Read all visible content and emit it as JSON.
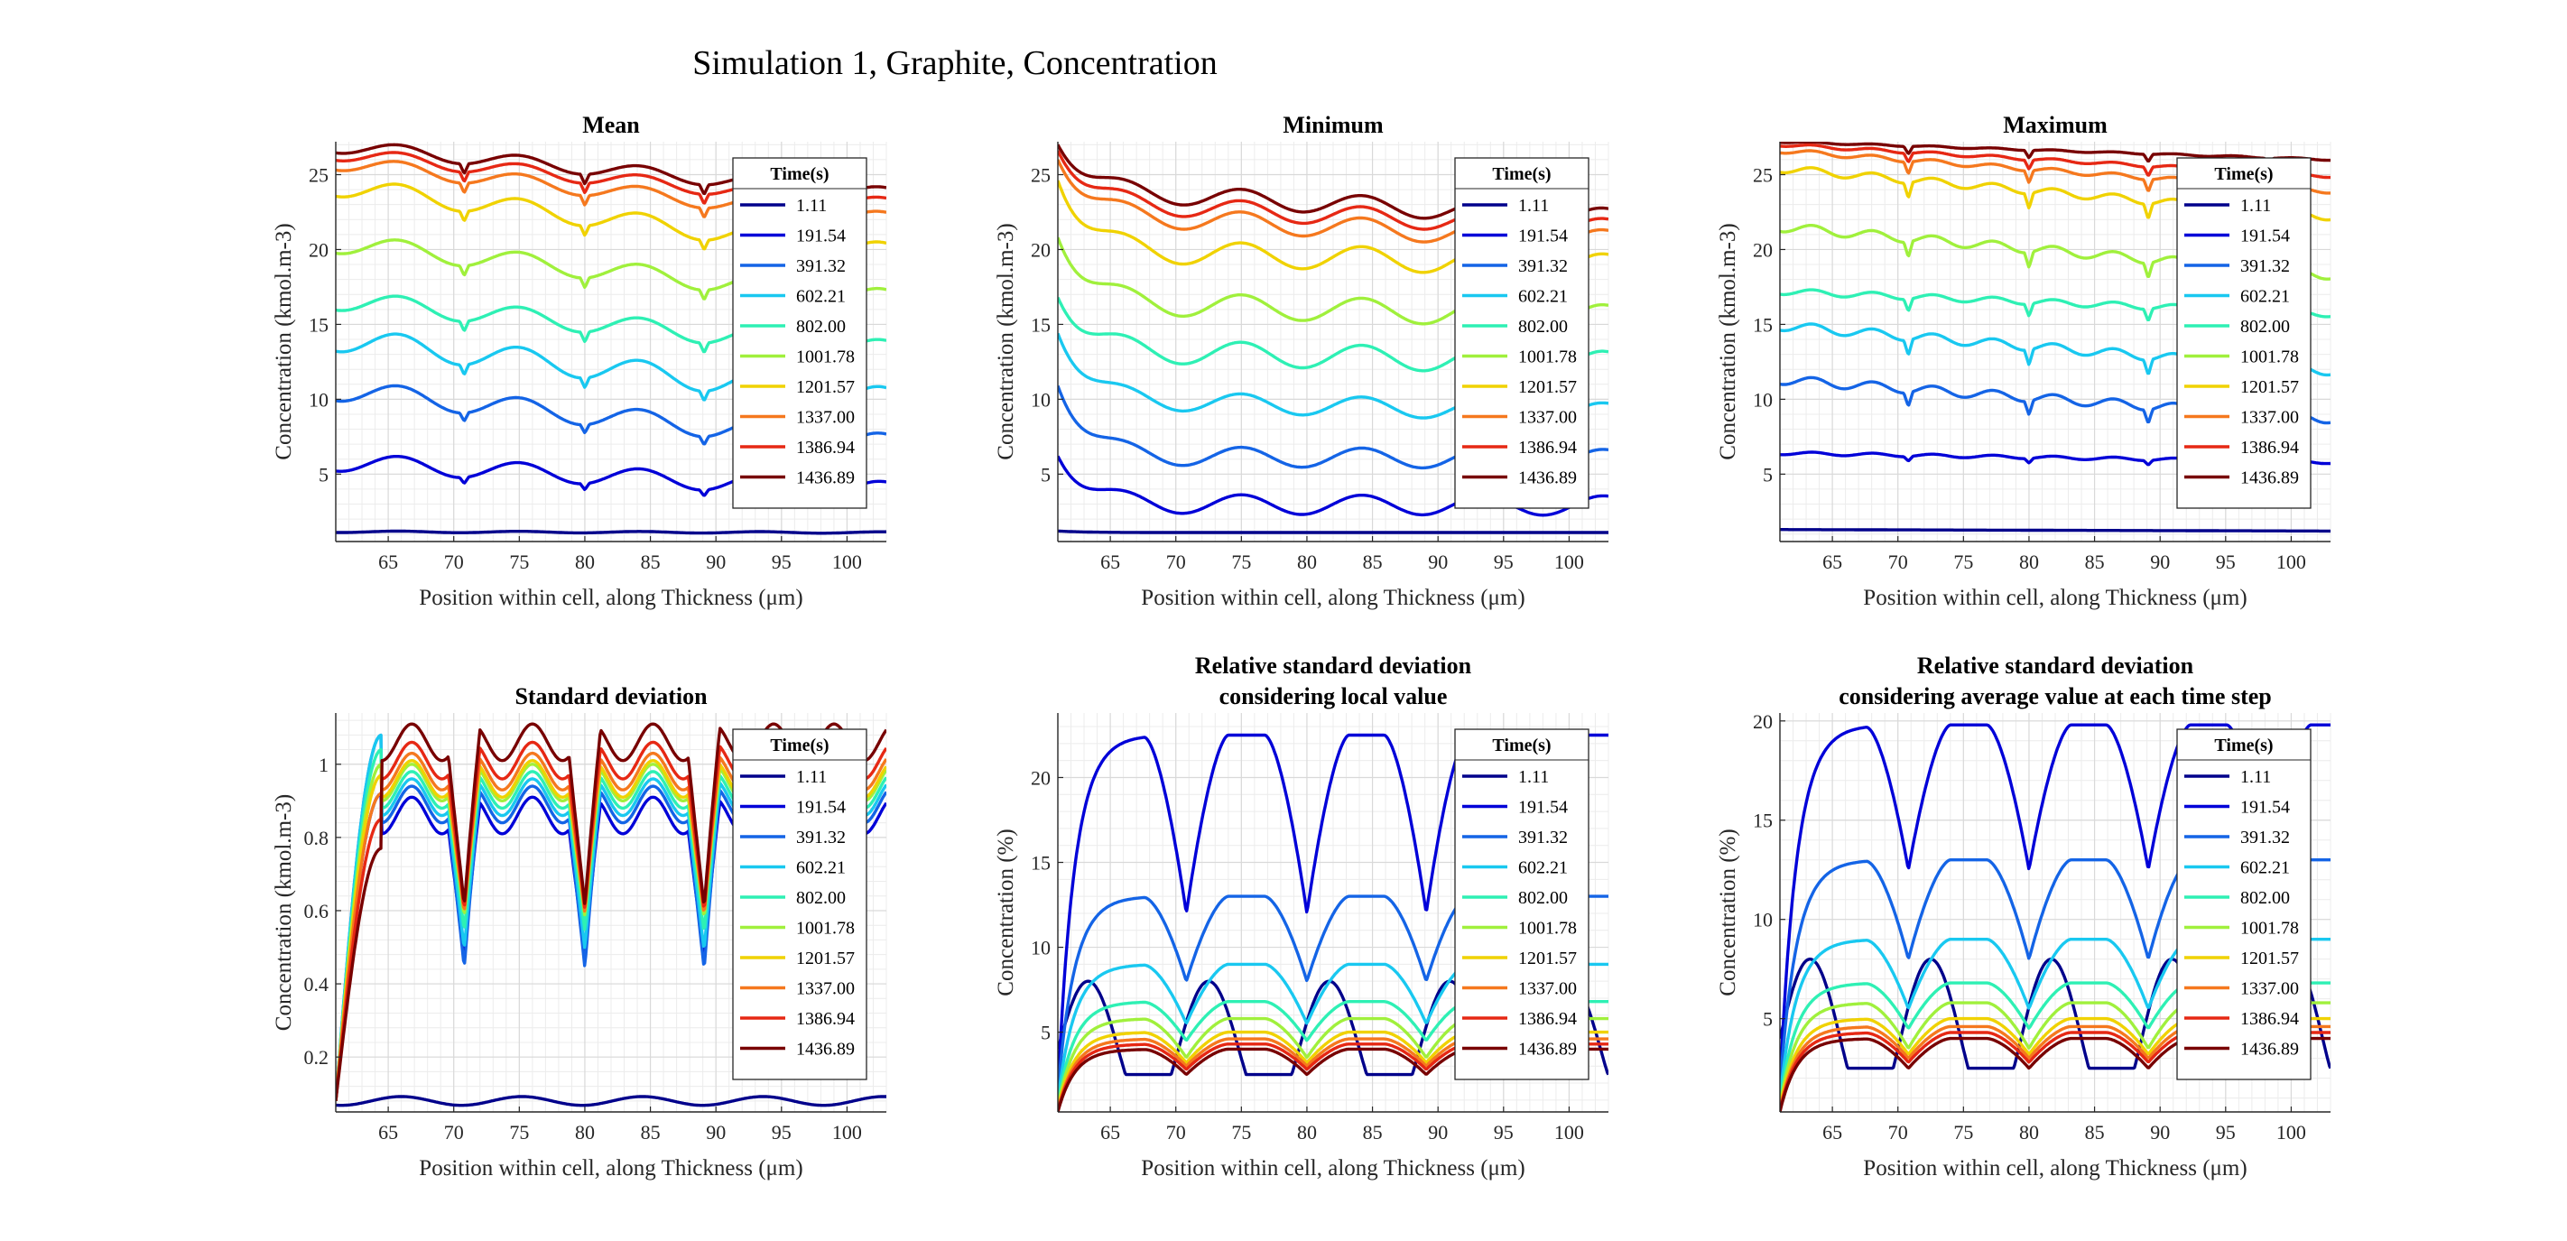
{
  "figure_title": "Simulation 1, Graphite, Concentration",
  "legend": {
    "title": "Time(s)",
    "entries": [
      "1.11",
      "191.54",
      "391.32",
      "602.21",
      "802.00",
      "1001.78",
      "1201.57",
      "1337.00",
      "1386.94",
      "1436.89"
    ],
    "colors": [
      "#00008B",
      "#0000D8",
      "#1464E6",
      "#19C8F0",
      "#2EF0B4",
      "#A0F03C",
      "#F0D200",
      "#F5781E",
      "#E62814",
      "#780000"
    ]
  },
  "chart_data": [
    {
      "type": "line",
      "title": "Mean",
      "xlabel": "Position within cell, along Thickness (μm)",
      "ylabel": "Concentration (kmol.m-3)",
      "xlim": [
        61,
        103
      ],
      "ylim": [
        0.5,
        27.2
      ],
      "xticks": [
        65,
        70,
        75,
        80,
        85,
        90,
        95,
        100
      ],
      "yticks": [
        5,
        10,
        15,
        20,
        25
      ],
      "grid": true,
      "legend_position": "top-right",
      "curve": {
        "kind": "wave",
        "phase": 61.2,
        "period": 9.2,
        "decay": 0.005,
        "base": [
          1.15,
          5.8,
          10.6,
          14.0,
          16.6,
          20.4,
          24.2,
          25.8,
          26.4,
          26.9
        ],
        "end": [
          1.1,
          3.9,
          7.0,
          10.0,
          13.3,
          16.7,
          19.8,
          22.0,
          23.0,
          23.7
        ],
        "amp": [
          0.05,
          0.6,
          0.7,
          0.8,
          0.65,
          0.65,
          0.65,
          0.5,
          0.45,
          0.45
        ],
        "notch_depth": [
          0,
          0.4,
          0.55,
          0.65,
          0.65,
          0.65,
          0.65,
          0.65,
          0.65,
          0.65
        ]
      },
      "notches": [
        70.8,
        80.0,
        89.1,
        98.3
      ]
    },
    {
      "type": "line",
      "title": "Minimum",
      "xlabel": "Position within cell, along Thickness (μm)",
      "ylabel": "Concentration (kmol.m-3)",
      "xlim": [
        61,
        103
      ],
      "ylim": [
        0.5,
        27.2
      ],
      "xticks": [
        65,
        70,
        75,
        80,
        85,
        90,
        95,
        100
      ],
      "yticks": [
        5,
        10,
        15,
        20,
        25
      ],
      "grid": true,
      "legend_position": "top-right",
      "curve": {
        "kind": "wave",
        "phase": 61.2,
        "period": 9.2,
        "decay": 0.35,
        "base": [
          1.1,
          3.0,
          6.2,
          10.0,
          13.3,
          16.5,
          20.0,
          22.4,
          23.2,
          24.0
        ],
        "end": [
          1.1,
          2.9,
          6.0,
          9.1,
          12.4,
          15.5,
          18.9,
          20.6,
          21.4,
          22.1
        ],
        "amp": [
          0.0,
          0.65,
          0.65,
          0.65,
          0.8,
          0.8,
          0.8,
          0.7,
          0.65,
          0.65
        ],
        "start": [
          1.2,
          6.2,
          10.9,
          14.4,
          16.8,
          20.8,
          24.6,
          26.0,
          26.6,
          27.0
        ],
        "notch_depth": [
          0,
          0,
          0,
          0,
          0,
          0,
          0,
          0,
          0,
          0
        ]
      },
      "notches": []
    },
    {
      "type": "line",
      "title": "Maximum",
      "xlabel": "Position within cell, along Thickness (μm)",
      "ylabel": "Concentration (kmol.m-3)",
      "xlim": [
        61,
        103
      ],
      "ylim": [
        0.5,
        27.2
      ],
      "xticks": [
        65,
        70,
        75,
        80,
        85,
        90,
        95,
        100
      ],
      "yticks": [
        5,
        10,
        15,
        20,
        25
      ],
      "grid": true,
      "legend_position": "top-right",
      "curve": {
        "kind": "wave",
        "phase": 61.2,
        "period": 4.6,
        "decay": 0.005,
        "base": [
          1.3,
          6.4,
          11.3,
          14.9,
          17.2,
          21.5,
          25.4,
          26.6,
          27.0,
          27.2
        ],
        "end": [
          1.2,
          5.8,
          8.7,
          11.9,
          15.7,
          18.3,
          22.2,
          23.9,
          24.9,
          26.0
        ],
        "amp": [
          0.0,
          0.1,
          0.3,
          0.3,
          0.2,
          0.3,
          0.25,
          0.15,
          0.1,
          0.05
        ],
        "notch_depth": [
          0,
          0.3,
          0.9,
          1.0,
          0.8,
          1.0,
          1.0,
          0.8,
          0.6,
          0.5
        ]
      },
      "notches": [
        70.8,
        80.0,
        89.1,
        98.3
      ]
    },
    {
      "type": "line",
      "title": "Standard deviation",
      "xlabel": "Position within cell, along Thickness (μm)",
      "ylabel": "Concentration (kmol.m-3)",
      "xlim": [
        61,
        103
      ],
      "ylim": [
        0.05,
        1.14
      ],
      "xticks": [
        65,
        70,
        75,
        80,
        85,
        90,
        95,
        100
      ],
      "yticks": [
        0.2,
        0.4,
        0.6,
        0.8,
        1
      ],
      "grid": true,
      "legend_position": "top-right",
      "curve": {
        "kind": "std",
        "peak": [
          0.09,
          0.92,
          1.08,
          1.08,
          1.04,
          1.0,
          0.97,
          0.92,
          0.85,
          0.77
        ],
        "level": [
          0.08,
          0.9,
          0.93,
          0.95,
          0.97,
          0.99,
          1.0,
          1.02,
          1.05,
          1.1
        ],
        "drop": [
          0.0,
          0.42,
          0.48,
          0.45,
          0.42,
          0.4,
          0.4,
          0.42,
          0.44,
          0.48
        ]
      },
      "notches": [
        70.8,
        80.0,
        89.1
      ]
    },
    {
      "type": "line",
      "title": "Relative standard deviation\nconsidering local value",
      "xlabel": "Position within cell, along Thickness (μm)",
      "ylabel": "Concentration (%)",
      "xlim": [
        61,
        103
      ],
      "ylim": [
        0.3,
        23.8
      ],
      "xticks": [
        65,
        70,
        75,
        80,
        85,
        90,
        95,
        100
      ],
      "yticks": [
        5,
        10,
        15,
        20
      ],
      "grid": true,
      "legend_position": "top-right",
      "curve": {
        "kind": "rsd",
        "plateau": [
          7.8,
          22.5,
          13.0,
          9.0,
          6.8,
          5.8,
          5.0,
          4.6,
          4.3,
          4.0
        ],
        "dip": [
          4.5,
          12.0,
          8.0,
          5.5,
          4.5,
          3.5,
          3.2,
          3.0,
          2.8,
          2.5
        ],
        "start": [
          1.5,
          1.5,
          1.5,
          1.0,
          0.8,
          0.6,
          0.5,
          0.4,
          0.35,
          0.3
        ]
      },
      "notches": [
        70.8,
        80.0,
        89.1,
        98.3
      ]
    },
    {
      "type": "line",
      "title": "Relative standard deviation\nconsidering average value at each time step",
      "xlabel": "Position within cell, along Thickness (μm)",
      "ylabel": "Concentration (%)",
      "xlim": [
        61,
        103
      ],
      "ylim": [
        0.3,
        20.4
      ],
      "xticks": [
        65,
        70,
        75,
        80,
        85,
        90,
        95,
        100
      ],
      "yticks": [
        5,
        10,
        15,
        20
      ],
      "grid": true,
      "legend_position": "top-right",
      "curve": {
        "kind": "rsd",
        "plateau": [
          8.0,
          19.8,
          13.0,
          9.0,
          6.8,
          5.8,
          5.0,
          4.6,
          4.3,
          4.0
        ],
        "dip": [
          4.5,
          12.5,
          8.0,
          5.5,
          4.5,
          3.5,
          3.2,
          3.0,
          2.8,
          2.5
        ],
        "start": [
          1.5,
          1.5,
          1.5,
          1.0,
          0.8,
          0.6,
          0.5,
          0.4,
          0.35,
          0.3
        ]
      },
      "notches": [
        70.8,
        80.0,
        89.1,
        98.3
      ]
    }
  ]
}
